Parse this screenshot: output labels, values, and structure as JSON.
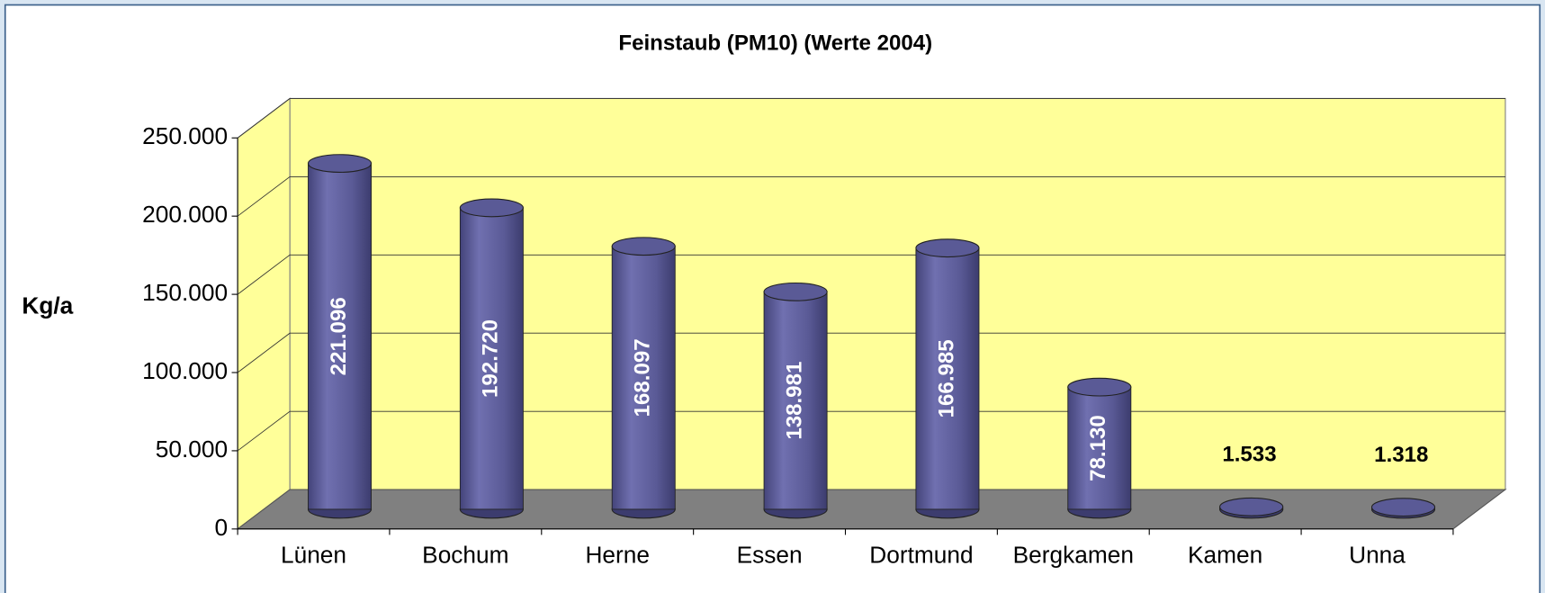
{
  "chart_data": {
    "type": "bar3d",
    "title": "Feinstaub (PM10) (Werte 2004)",
    "y_label": "Kg/a",
    "categories": [
      "Lünen",
      "Bochum",
      "Herne",
      "Essen",
      "Dortmund",
      "Bergkamen",
      "Kamen",
      "Unna"
    ],
    "values": [
      221096,
      192720,
      168097,
      138981,
      166985,
      78130,
      1533,
      1318
    ],
    "value_labels": [
      "221.096",
      "192.720",
      "168.097",
      "138.981",
      "166.985",
      "78.130",
      "1.533",
      "1.318"
    ],
    "color": "#5a5a96",
    "ylim": [
      0,
      250000
    ],
    "yticks": [
      0,
      {
        "value": 50000,
        "label": "50.000"
      },
      {
        "value": 100000,
        "label": "100.000"
      },
      {
        "value": 150000,
        "label": "150.000"
      },
      {
        "value": 200000,
        "label": "200.000"
      },
      {
        "value": 250000,
        "label": "250.000"
      }
    ],
    "grid": true
  }
}
